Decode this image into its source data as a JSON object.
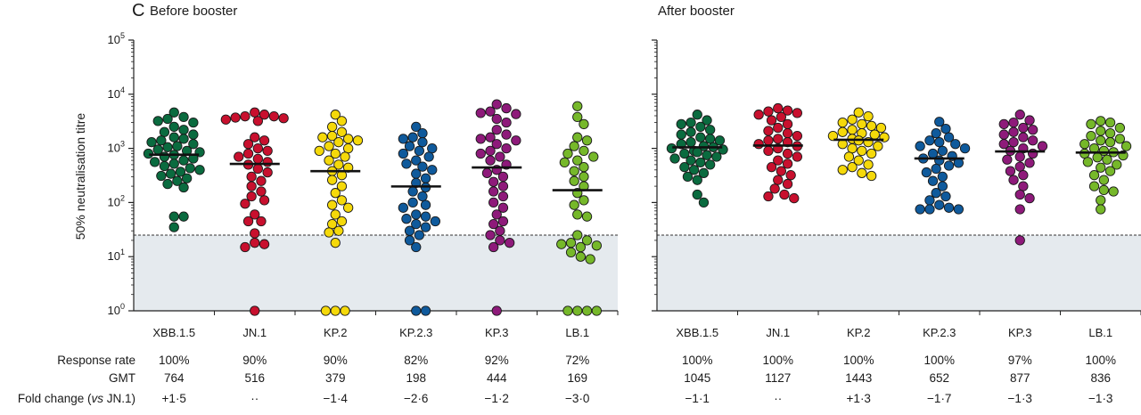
{
  "figure": {
    "panel_letter": "C"
  },
  "chart_data": {
    "type": "scatter",
    "y_axis": {
      "label": "50% neutralisation titre",
      "scale": "log10",
      "range": [
        1,
        100000
      ],
      "tick_labels": [
        {
          "base": "10",
          "exp": "0",
          "value": 1
        },
        {
          "base": "10",
          "exp": "1",
          "value": 10
        },
        {
          "base": "10",
          "exp": "2",
          "value": 100
        },
        {
          "base": "10",
          "exp": "3",
          "value": 1000
        },
        {
          "base": "10",
          "exp": "4",
          "value": 10000
        },
        {
          "base": "10",
          "exp": "5",
          "value": 100000
        }
      ]
    },
    "threshold": 25,
    "table_labels": {
      "response_rate": "Response rate",
      "gmt": "GMT",
      "fold_change": "Fold change (vs JN.1)"
    },
    "panels": [
      {
        "title": "Before booster",
        "groups": [
          {
            "name": "XBB.1.5",
            "color": "#0a6b3f",
            "gmt": 764,
            "response_rate": "100%",
            "gmt_label": "764",
            "fold_change": "+1·5",
            "values": [
              3500,
              3200,
              3000,
              3800,
              4600,
              2500,
              2200,
              2000,
              1800,
              1600,
              1500,
              1400,
              1300,
              1200,
              1100,
              1050,
              950,
              900,
              850,
              800,
              760,
              700,
              650,
              600,
              560,
              520,
              470,
              430,
              400,
              370,
              340,
              310,
              280,
              250,
              220,
              190,
              55,
              55,
              35
            ]
          },
          {
            "name": "JN.1",
            "color": "#c8102e",
            "gmt": 516,
            "response_rate": "90%",
            "gmt_label": "516",
            "fold_change": "··",
            "values": [
              4600,
              4200,
              3900,
              3600,
              3400,
              3200,
              3700,
              3900,
              1600,
              1400,
              1200,
              1000,
              900,
              800,
              700,
              640,
              560,
              500,
              420,
              360,
              300,
              250,
              200,
              160,
              130,
              110,
              95,
              60,
              45,
              45,
              27,
              18,
              17,
              15,
              1
            ]
          },
          {
            "name": "KP.2",
            "color": "#f5d90a",
            "gmt": 379,
            "response_rate": "90%",
            "gmt_label": "379",
            "fold_change": "−1·4",
            "values": [
              4200,
              3200,
              2500,
              2000,
              1700,
              1600,
              1500,
              1400,
              1300,
              1100,
              1000,
              900,
              800,
              700,
              600,
              500,
              440,
              380,
              320,
              260,
              200,
              150,
              110,
              90,
              80,
              60,
              45,
              40,
              30,
              28,
              18,
              1,
              1,
              1
            ]
          },
          {
            "name": "KP.2.3",
            "color": "#0f5a9c",
            "gmt": 198,
            "response_rate": "82%",
            "gmt_label": "198",
            "fold_change": "−2·6",
            "values": [
              2500,
              1900,
              1600,
              1500,
              1300,
              1100,
              1000,
              900,
              800,
              700,
              600,
              520,
              460,
              400,
              340,
              280,
              230,
              190,
              160,
              130,
              100,
              90,
              80,
              60,
              55,
              50,
              45,
              40,
              35,
              30,
              25,
              20,
              15,
              1,
              1
            ]
          },
          {
            "name": "KP.3",
            "color": "#8e1a7a",
            "gmt": 444,
            "response_rate": "92%",
            "gmt_label": "444",
            "fold_change": "−1·2",
            "values": [
              6500,
              5500,
              4800,
              4500,
              4300,
              3500,
              3000,
              2200,
              1800,
              1600,
              1500,
              1400,
              1200,
              1000,
              900,
              800,
              700,
              600,
              500,
              400,
              350,
              300,
              240,
              200,
              160,
              130,
              100,
              80,
              60,
              45,
              40,
              30,
              25,
              20,
              18,
              15,
              1
            ]
          },
          {
            "name": "LB.1",
            "color": "#76b82a",
            "gmt": 169,
            "response_rate": "72%",
            "gmt_label": "169",
            "fold_change": "−3·0",
            "values": [
              6000,
              3800,
              2800,
              1600,
              1400,
              1100,
              900,
              800,
              700,
              600,
              550,
              450,
              380,
              300,
              250,
              200,
              150,
              110,
              90,
              60,
              55,
              25,
              20,
              18,
              17,
              16,
              15,
              12,
              10,
              9,
              1,
              1,
              1,
              1
            ]
          }
        ]
      },
      {
        "title": "After booster",
        "groups": [
          {
            "name": "XBB.1.5",
            "color": "#0a6b3f",
            "gmt": 1045,
            "response_rate": "100%",
            "gmt_label": "1045",
            "fold_change": "−1·1",
            "values": [
              4200,
              3300,
              3000,
              2800,
              2500,
              2200,
              2000,
              1800,
              1600,
              1500,
              1400,
              1300,
              1200,
              1100,
              1050,
              1000,
              950,
              900,
              850,
              800,
              750,
              700,
              650,
              600,
              550,
              500,
              450,
              400,
              350,
              300,
              260,
              140,
              100
            ]
          },
          {
            "name": "JN.1",
            "color": "#c8102e",
            "gmt": 1127,
            "response_rate": "100%",
            "gmt_label": "1127",
            "fold_change": "··",
            "values": [
              5500,
              5000,
              4800,
              4500,
              4200,
              3800,
              3300,
              2800,
              2400,
              2100,
              1900,
              1700,
              1500,
              1400,
              1300,
              1200,
              1100,
              1000,
              900,
              800,
              700,
              600,
              520,
              450,
              380,
              320,
              260,
              220,
              180,
              140,
              130,
              120
            ]
          },
          {
            "name": "KP.2",
            "color": "#f5d90a",
            "gmt": 1443,
            "response_rate": "100%",
            "gmt_label": "1443",
            "fold_change": "+1·3",
            "values": [
              4600,
              3900,
              3400,
              3000,
              2800,
              2600,
              2400,
              2200,
              2000,
              1900,
              1800,
              1700,
              1600,
              1500,
              1400,
              1300,
              1200,
              1100,
              1000,
              900,
              800,
              700,
              600,
              500,
              450,
              400,
              350,
              310
            ]
          },
          {
            "name": "KP.2.3",
            "color": "#0f5a9c",
            "gmt": 652,
            "response_rate": "100%",
            "gmt_label": "652",
            "fold_change": "−1·7",
            "values": [
              3100,
              2300,
              1900,
              1600,
              1400,
              1300,
              1200,
              1100,
              1000,
              900,
              800,
              720,
              650,
              600,
              540,
              480,
              420,
              360,
              300,
              250,
              200,
              150,
              130,
              110,
              90,
              80,
              75,
              75,
              75
            ]
          },
          {
            "name": "KP.3",
            "color": "#8e1a7a",
            "gmt": 877,
            "response_rate": "97%",
            "gmt_label": "877",
            "fold_change": "−1·3",
            "values": [
              4200,
              3300,
              3000,
              2800,
              2400,
              2200,
              2000,
              1800,
              1600,
              1400,
              1300,
              1200,
              1100,
              1000,
              900,
              800,
              700,
              620,
              540,
              460,
              380,
              320,
              260,
              200,
              140,
              120,
              75,
              20
            ]
          },
          {
            "name": "LB.1",
            "color": "#76b82a",
            "gmt": 836,
            "response_rate": "100%",
            "gmt_label": "836",
            "fold_change": "−1·3",
            "values": [
              3200,
              3000,
              2800,
              2400,
              2100,
              1900,
              1700,
              1500,
              1400,
              1300,
              1200,
              1100,
              1000,
              900,
              850,
              800,
              740,
              680,
              620,
              560,
              500,
              440,
              380,
              320,
              260,
              200,
              170,
              160,
              110,
              75
            ]
          }
        ]
      }
    ]
  }
}
